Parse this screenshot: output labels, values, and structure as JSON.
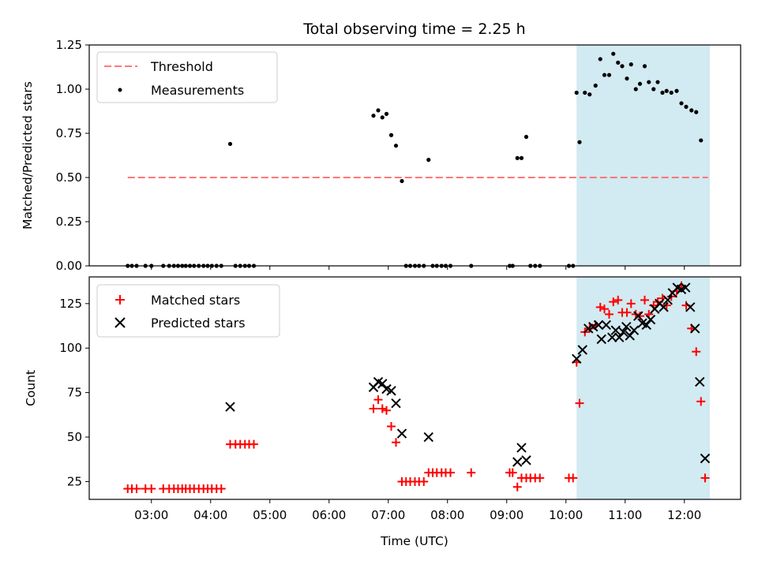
{
  "chart_data": {
    "title": "Total observing time = 2.25 h",
    "xlabel": "Time (UTC)",
    "x_unit": "hours UTC",
    "xlim": [
      1.95,
      12.95
    ],
    "x_ticks": [
      3,
      4,
      5,
      6,
      7,
      8,
      9,
      10,
      11,
      12
    ],
    "x_tick_labels": [
      "03:00",
      "04:00",
      "05:00",
      "06:00",
      "07:00",
      "08:00",
      "09:00",
      "10:00",
      "11:00",
      "12:00"
    ],
    "highlight_span": [
      10.18,
      12.43
    ],
    "highlight_color": "#add8e6",
    "panels": [
      {
        "type": "scatter",
        "ylabel": "Matched/Predicted stars",
        "ylim": [
          0,
          1.25
        ],
        "y_ticks": [
          "0.00",
          "0.25",
          "0.50",
          "0.75",
          "1.00",
          "1.25"
        ],
        "legend_position": "upper left",
        "threshold": {
          "name": "Threshold",
          "value": 0.5,
          "x_range": [
            2.6,
            12.4
          ],
          "color": "#ff7777"
        },
        "series": [
          {
            "name": "Measurements",
            "color": "#000000",
            "marker": "dot",
            "points": [
              [
                2.6,
                0
              ],
              [
                2.67,
                0
              ],
              [
                2.75,
                0
              ],
              [
                2.9,
                0
              ],
              [
                3.0,
                0
              ],
              [
                3.2,
                0
              ],
              [
                3.3,
                0
              ],
              [
                3.38,
                0
              ],
              [
                3.45,
                0
              ],
              [
                3.52,
                0
              ],
              [
                3.58,
                0
              ],
              [
                3.65,
                0
              ],
              [
                3.72,
                0
              ],
              [
                3.8,
                0
              ],
              [
                3.88,
                0
              ],
              [
                3.95,
                0
              ],
              [
                4.02,
                0
              ],
              [
                4.1,
                0
              ],
              [
                4.18,
                0
              ],
              [
                4.33,
                0.69
              ],
              [
                4.42,
                0
              ],
              [
                4.5,
                0
              ],
              [
                4.58,
                0
              ],
              [
                4.65,
                0
              ],
              [
                4.73,
                0
              ],
              [
                6.75,
                0.85
              ],
              [
                6.83,
                0.88
              ],
              [
                6.9,
                0.84
              ],
              [
                6.97,
                0.86
              ],
              [
                7.05,
                0.74
              ],
              [
                7.13,
                0.68
              ],
              [
                7.23,
                0.48
              ],
              [
                7.3,
                0
              ],
              [
                7.37,
                0
              ],
              [
                7.45,
                0
              ],
              [
                7.52,
                0
              ],
              [
                7.6,
                0
              ],
              [
                7.68,
                0.6
              ],
              [
                7.75,
                0
              ],
              [
                7.82,
                0
              ],
              [
                7.9,
                0
              ],
              [
                7.97,
                0
              ],
              [
                8.05,
                0
              ],
              [
                8.4,
                0
              ],
              [
                9.05,
                0
              ],
              [
                9.1,
                0
              ],
              [
                9.18,
                0.61
              ],
              [
                9.25,
                0.61
              ],
              [
                9.33,
                0.73
              ],
              [
                9.4,
                0
              ],
              [
                9.48,
                0
              ],
              [
                9.56,
                0
              ],
              [
                10.05,
                0
              ],
              [
                10.12,
                0
              ],
              [
                10.18,
                0.98
              ],
              [
                10.23,
                0.7
              ],
              [
                10.32,
                0.98
              ],
              [
                10.4,
                0.97
              ],
              [
                10.5,
                1.02
              ],
              [
                10.58,
                1.17
              ],
              [
                10.65,
                1.08
              ],
              [
                10.73,
                1.08
              ],
              [
                10.8,
                1.2
              ],
              [
                10.88,
                1.15
              ],
              [
                10.95,
                1.13
              ],
              [
                11.03,
                1.06
              ],
              [
                11.1,
                1.14
              ],
              [
                11.18,
                1.0
              ],
              [
                11.25,
                1.03
              ],
              [
                11.33,
                1.13
              ],
              [
                11.4,
                1.04
              ],
              [
                11.48,
                1.0
              ],
              [
                11.55,
                1.04
              ],
              [
                11.63,
                0.98
              ],
              [
                11.7,
                0.99
              ],
              [
                11.78,
                0.98
              ],
              [
                11.87,
                0.99
              ],
              [
                11.95,
                0.92
              ],
              [
                12.03,
                0.9
              ],
              [
                12.12,
                0.88
              ],
              [
                12.2,
                0.87
              ],
              [
                12.28,
                0.71
              ]
            ]
          }
        ]
      },
      {
        "type": "scatter",
        "ylabel": "Count",
        "ylim": [
          15,
          140
        ],
        "y_ticks": [
          "25",
          "50",
          "75",
          "100",
          "125"
        ],
        "legend_position": "upper left",
        "series": [
          {
            "name": "Matched stars",
            "color": "#ff0000",
            "marker": "plus",
            "points": [
              [
                2.6,
                21
              ],
              [
                2.67,
                21
              ],
              [
                2.75,
                21
              ],
              [
                2.9,
                21
              ],
              [
                3.0,
                21
              ],
              [
                3.2,
                21
              ],
              [
                3.3,
                21
              ],
              [
                3.38,
                21
              ],
              [
                3.45,
                21
              ],
              [
                3.52,
                21
              ],
              [
                3.58,
                21
              ],
              [
                3.65,
                21
              ],
              [
                3.72,
                21
              ],
              [
                3.8,
                21
              ],
              [
                3.88,
                21
              ],
              [
                3.95,
                21
              ],
              [
                4.02,
                21
              ],
              [
                4.1,
                21
              ],
              [
                4.18,
                21
              ],
              [
                4.33,
                46
              ],
              [
                4.42,
                46
              ],
              [
                4.5,
                46
              ],
              [
                4.58,
                46
              ],
              [
                4.65,
                46
              ],
              [
                4.73,
                46
              ],
              [
                6.75,
                66
              ],
              [
                6.83,
                71
              ],
              [
                6.9,
                66
              ],
              [
                6.97,
                65
              ],
              [
                7.05,
                56
              ],
              [
                7.13,
                47
              ],
              [
                7.23,
                25
              ],
              [
                7.3,
                25
              ],
              [
                7.37,
                25
              ],
              [
                7.45,
                25
              ],
              [
                7.52,
                25
              ],
              [
                7.6,
                25
              ],
              [
                7.68,
                30
              ],
              [
                7.75,
                30
              ],
              [
                7.82,
                30
              ],
              [
                7.9,
                30
              ],
              [
                7.97,
                30
              ],
              [
                8.05,
                30
              ],
              [
                8.4,
                30
              ],
              [
                9.05,
                30
              ],
              [
                9.1,
                30
              ],
              [
                9.18,
                22
              ],
              [
                9.25,
                27
              ],
              [
                9.33,
                27
              ],
              [
                9.4,
                27
              ],
              [
                9.48,
                27
              ],
              [
                9.56,
                27
              ],
              [
                10.05,
                27
              ],
              [
                10.12,
                27
              ],
              [
                10.18,
                92
              ],
              [
                10.23,
                69
              ],
              [
                10.32,
                109
              ],
              [
                10.4,
                111
              ],
              [
                10.5,
                113
              ],
              [
                10.58,
                123
              ],
              [
                10.65,
                122
              ],
              [
                10.73,
                119
              ],
              [
                10.8,
                126
              ],
              [
                10.88,
                127
              ],
              [
                10.95,
                120
              ],
              [
                11.03,
                120
              ],
              [
                11.1,
                125
              ],
              [
                11.18,
                119
              ],
              [
                11.25,
                118
              ],
              [
                11.33,
                127
              ],
              [
                11.4,
                119
              ],
              [
                11.48,
                124
              ],
              [
                11.55,
                126
              ],
              [
                11.63,
                128
              ],
              [
                11.7,
                124
              ],
              [
                11.78,
                129
              ],
              [
                11.87,
                132
              ],
              [
                11.95,
                135
              ],
              [
                12.03,
                124
              ],
              [
                12.12,
                111
              ],
              [
                12.2,
                98
              ],
              [
                12.28,
                70
              ],
              [
                12.35,
                27
              ]
            ]
          },
          {
            "name": "Predicted stars",
            "color": "#000000",
            "marker": "x",
            "points": [
              [
                4.33,
                67
              ],
              [
                6.75,
                78
              ],
              [
                6.83,
                81
              ],
              [
                6.9,
                80
              ],
              [
                6.97,
                77
              ],
              [
                7.05,
                76
              ],
              [
                7.13,
                69
              ],
              [
                7.23,
                52
              ],
              [
                7.68,
                50
              ],
              [
                9.18,
                36
              ],
              [
                9.25,
                44
              ],
              [
                9.33,
                37
              ],
              [
                10.18,
                94
              ],
              [
                10.28,
                99
              ],
              [
                10.38,
                111
              ],
              [
                10.46,
                112
              ],
              [
                10.55,
                113
              ],
              [
                10.6,
                105
              ],
              [
                10.68,
                113
              ],
              [
                10.78,
                106
              ],
              [
                10.84,
                110
              ],
              [
                10.9,
                106
              ],
              [
                10.97,
                109
              ],
              [
                11.02,
                112
              ],
              [
                11.08,
                107
              ],
              [
                11.15,
                110
              ],
              [
                11.22,
                118
              ],
              [
                11.29,
                114
              ],
              [
                11.36,
                113
              ],
              [
                11.43,
                116
              ],
              [
                11.5,
                122
              ],
              [
                11.58,
                125
              ],
              [
                11.65,
                123
              ],
              [
                11.72,
                127
              ],
              [
                11.8,
                131
              ],
              [
                11.88,
                134
              ],
              [
                11.95,
                133
              ],
              [
                12.02,
                134
              ],
              [
                12.1,
                123
              ],
              [
                12.18,
                111
              ],
              [
                12.26,
                81
              ],
              [
                12.35,
                38
              ]
            ]
          }
        ]
      }
    ]
  }
}
